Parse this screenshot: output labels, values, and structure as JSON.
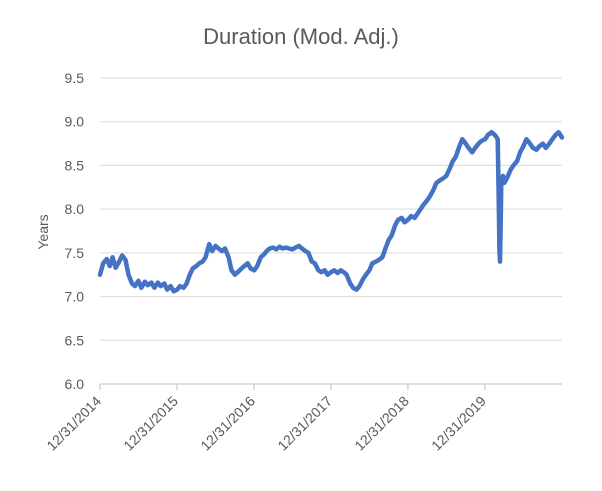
{
  "chart_data": {
    "type": "line",
    "title": "Duration (Mod. Adj.)",
    "xlabel": "",
    "ylabel": "Years",
    "ylim": [
      6.0,
      9.5
    ],
    "yticks": [
      6.0,
      6.5,
      7.0,
      7.5,
      8.0,
      8.5,
      9.0,
      9.5
    ],
    "ytick_labels": [
      "6.0",
      "6.5",
      "7.0",
      "7.5",
      "8.0",
      "8.5",
      "9.0",
      "9.5"
    ],
    "xlim": [
      "2014-12-31",
      "2020-12-31"
    ],
    "xticks": [
      "2014-12-31",
      "2015-12-31",
      "2016-12-31",
      "2017-12-31",
      "2018-12-31",
      "2019-12-31"
    ],
    "xtick_labels": [
      "12/31/2014",
      "12/31/2015",
      "12/31/2016",
      "12/31/2017",
      "12/31/2018",
      "12/31/2019"
    ],
    "grid": true,
    "legend": "none",
    "series": [
      {
        "color": "#4472c4",
        "x": [
          "2014-12-31",
          "2015-01-15",
          "2015-02-01",
          "2015-02-15",
          "2015-03-01",
          "2015-03-15",
          "2015-04-01",
          "2015-04-15",
          "2015-05-01",
          "2015-05-15",
          "2015-06-01",
          "2015-06-15",
          "2015-07-01",
          "2015-07-15",
          "2015-08-01",
          "2015-08-15",
          "2015-09-01",
          "2015-09-15",
          "2015-10-01",
          "2015-10-15",
          "2015-11-01",
          "2015-11-15",
          "2015-12-01",
          "2015-12-15",
          "2016-01-01",
          "2016-01-15",
          "2016-02-01",
          "2016-02-15",
          "2016-03-01",
          "2016-03-15",
          "2016-04-01",
          "2016-04-15",
          "2016-05-01",
          "2016-05-15",
          "2016-06-01",
          "2016-06-15",
          "2016-07-01",
          "2016-07-15",
          "2016-08-01",
          "2016-08-15",
          "2016-09-01",
          "2016-09-15",
          "2016-10-01",
          "2016-10-15",
          "2016-11-01",
          "2016-11-15",
          "2016-12-01",
          "2016-12-15",
          "2017-01-01",
          "2017-01-15",
          "2017-02-01",
          "2017-02-15",
          "2017-03-01",
          "2017-03-15",
          "2017-04-01",
          "2017-04-15",
          "2017-05-01",
          "2017-05-15",
          "2017-06-01",
          "2017-06-15",
          "2017-07-01",
          "2017-07-15",
          "2017-08-01",
          "2017-08-15",
          "2017-09-01",
          "2017-09-15",
          "2017-10-01",
          "2017-10-15",
          "2017-11-01",
          "2017-11-15",
          "2017-12-01",
          "2017-12-15",
          "2018-01-01",
          "2018-01-15",
          "2018-02-01",
          "2018-02-15",
          "2018-03-01",
          "2018-03-15",
          "2018-04-01",
          "2018-04-15",
          "2018-05-01",
          "2018-05-15",
          "2018-06-01",
          "2018-06-15",
          "2018-07-01",
          "2018-07-15",
          "2018-08-01",
          "2018-08-15",
          "2018-09-01",
          "2018-09-15",
          "2018-10-01",
          "2018-10-15",
          "2018-11-01",
          "2018-11-15",
          "2018-12-01",
          "2018-12-15",
          "2019-01-01",
          "2019-01-15",
          "2019-02-01",
          "2019-02-15",
          "2019-03-01",
          "2019-03-15",
          "2019-04-01",
          "2019-04-15",
          "2019-05-01",
          "2019-05-15",
          "2019-06-01",
          "2019-06-15",
          "2019-07-01",
          "2019-07-15",
          "2019-08-01",
          "2019-08-15",
          "2019-09-01",
          "2019-09-15",
          "2019-10-01",
          "2019-10-15",
          "2019-11-01",
          "2019-11-15",
          "2019-12-01",
          "2019-12-15",
          "2020-01-01",
          "2020-01-15",
          "2020-02-01",
          "2020-02-15",
          "2020-02-25",
          "2020-03-01",
          "2020-03-05",
          "2020-03-09",
          "2020-03-12",
          "2020-03-15",
          "2020-03-18",
          "2020-03-22",
          "2020-03-26",
          "2020-04-01",
          "2020-04-15",
          "2020-05-01",
          "2020-05-15",
          "2020-06-01",
          "2020-06-15",
          "2020-07-01",
          "2020-07-15",
          "2020-08-01",
          "2020-08-15",
          "2020-09-01",
          "2020-09-15",
          "2020-10-01",
          "2020-10-15",
          "2020-11-01",
          "2020-11-15",
          "2020-12-01",
          "2020-12-15",
          "2020-12-31"
        ],
        "y": [
          7.25,
          7.38,
          7.43,
          7.35,
          7.45,
          7.33,
          7.4,
          7.47,
          7.42,
          7.25,
          7.15,
          7.12,
          7.18,
          7.1,
          7.17,
          7.13,
          7.16,
          7.1,
          7.16,
          7.12,
          7.15,
          7.08,
          7.12,
          7.06,
          7.08,
          7.12,
          7.1,
          7.15,
          7.25,
          7.32,
          7.35,
          7.38,
          7.4,
          7.45,
          7.6,
          7.52,
          7.58,
          7.55,
          7.52,
          7.55,
          7.45,
          7.3,
          7.25,
          7.28,
          7.32,
          7.35,
          7.38,
          7.32,
          7.3,
          7.35,
          7.45,
          7.48,
          7.52,
          7.55,
          7.56,
          7.54,
          7.57,
          7.55,
          7.56,
          7.55,
          7.54,
          7.56,
          7.58,
          7.55,
          7.52,
          7.5,
          7.4,
          7.38,
          7.3,
          7.28,
          7.3,
          7.25,
          7.28,
          7.3,
          7.27,
          7.3,
          7.28,
          7.25,
          7.15,
          7.1,
          7.08,
          7.12,
          7.2,
          7.25,
          7.3,
          7.38,
          7.4,
          7.42,
          7.45,
          7.55,
          7.65,
          7.7,
          7.82,
          7.88,
          7.9,
          7.85,
          7.88,
          7.92,
          7.9,
          7.95,
          8.0,
          8.05,
          8.1,
          8.15,
          8.22,
          8.3,
          8.33,
          8.35,
          8.38,
          8.45,
          8.55,
          8.6,
          8.72,
          8.8,
          8.75,
          8.7,
          8.65,
          8.7,
          8.75,
          8.78,
          8.8,
          8.85,
          8.88,
          8.85,
          8.82,
          8.8,
          8.2,
          7.55,
          7.4,
          7.85,
          8.3,
          8.35,
          8.38,
          8.3,
          8.36,
          8.45,
          8.5,
          8.55,
          8.65,
          8.72,
          8.8,
          8.75,
          8.7,
          8.68,
          8.72,
          8.75,
          8.7,
          8.75,
          8.8,
          8.85,
          8.88,
          8.82
        ]
      }
    ]
  }
}
